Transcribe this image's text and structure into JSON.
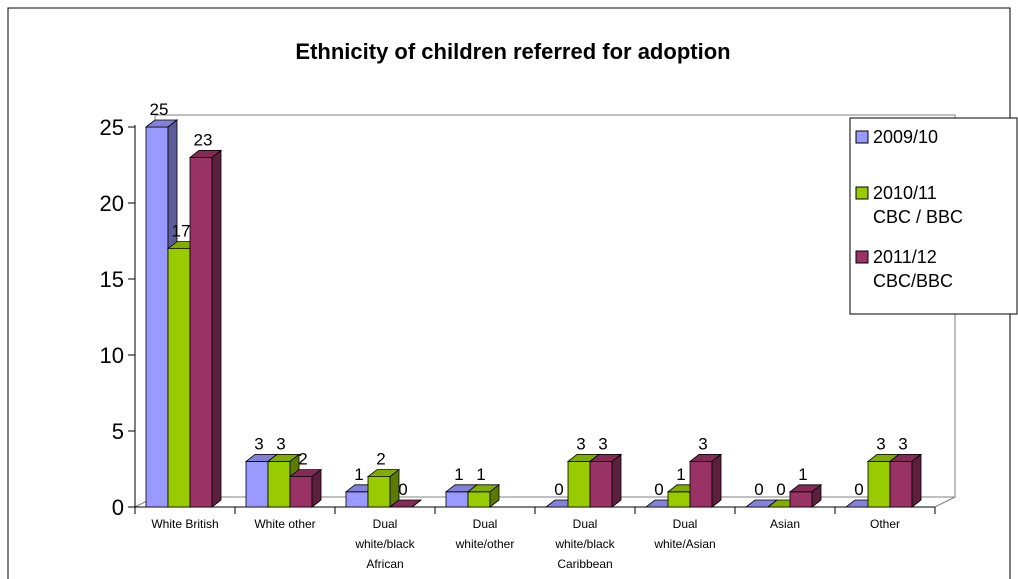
{
  "chart_data": {
    "type": "bar",
    "title": "Ethnicity of children referred for adoption",
    "xlabel": "",
    "ylabel": "",
    "ylim": [
      0,
      25
    ],
    "yticks": [
      "0",
      "5",
      "10",
      "15",
      "20",
      "25"
    ],
    "categories": [
      [
        "White British"
      ],
      [
        "White other"
      ],
      [
        "Dual",
        "white/black",
        "African"
      ],
      [
        "Dual",
        "white/other"
      ],
      [
        "Dual",
        "white/black",
        "Caribbean"
      ],
      [
        "Dual",
        "white/Asian"
      ],
      [
        "Asian"
      ],
      [
        "Other"
      ]
    ],
    "series": [
      {
        "name": [
          "2009/10"
        ],
        "color": "#9999FF",
        "values": [
          25,
          3,
          1,
          1,
          0,
          0,
          0,
          0
        ],
        "labels": [
          "25",
          "3",
          "1",
          "1",
          "0",
          "0",
          "0",
          "0"
        ]
      },
      {
        "name": [
          "2010/11",
          "CBC / BBC"
        ],
        "color": "#99CC00",
        "values": [
          17,
          3,
          2,
          1,
          3,
          1,
          0,
          3
        ],
        "labels": [
          "17",
          "3",
          "2",
          "1",
          "3",
          "1",
          "0",
          "3"
        ]
      },
      {
        "name": [
          "2011/12",
          "CBC/BBC"
        ],
        "color": "#993366",
        "values": [
          23,
          2,
          0,
          null,
          3,
          3,
          1,
          3
        ],
        "labels": [
          "23",
          "2",
          "0",
          "",
          "3",
          "3",
          "1",
          "3"
        ]
      }
    ],
    "legend_position": "right",
    "grid": false,
    "style": "3d-clustered-bar"
  }
}
